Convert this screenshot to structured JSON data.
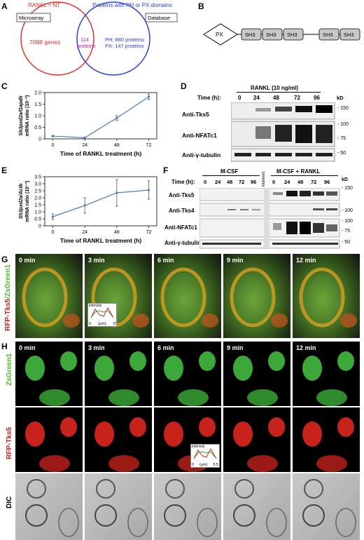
{
  "panel_labels": {
    "A": "A",
    "B": "B",
    "C": "C",
    "D": "D",
    "E": "E",
    "F": "F",
    "G": "G",
    "H": "H"
  },
  "venn": {
    "left_set": "RANKL > NT",
    "right_set": "Proteins with PH or PX domains",
    "left_box": "Microarray",
    "right_box": "Database",
    "left_count": "7088 genes",
    "overlap_line1": "114",
    "overlap_line2": "proteins",
    "right_line1": "PH: 880 proteins",
    "right_line2": "PX: 147 proteins",
    "left_color": "#e0332a",
    "right_color": "#2a3fd6",
    "overlap_color": "#c0189a"
  },
  "domains": {
    "px": "PX",
    "sh3": "SH3"
  },
  "chart_data": [
    {
      "type": "line",
      "panel": "C",
      "x": [
        0,
        24,
        48,
        72
      ],
      "y": [
        0.12,
        0.05,
        0.9,
        1.82
      ],
      "err": [
        0.03,
        0.02,
        0.1,
        0.12
      ],
      "xticks": [
        "0",
        "24",
        "48",
        "72"
      ],
      "yticks": [
        "0",
        "0.5",
        "1.0",
        "1.5",
        "2.0"
      ],
      "ylim": [
        0,
        2.0
      ],
      "xlabel": "Time of RANKL treatment (h)",
      "ylabel_line1": "Sh3pxd2a/Gapdh",
      "ylabel_line2": "mRNA ratio (10⁻³)",
      "color": "#4a7fc1"
    },
    {
      "type": "line",
      "panel": "E",
      "x": [
        0,
        24,
        48,
        72
      ],
      "y": [
        0.65,
        1.45,
        2.35,
        2.55
      ],
      "err": [
        0.2,
        0.55,
        0.95,
        0.65
      ],
      "xticks": [
        "0",
        "24",
        "48",
        "72"
      ],
      "yticks": [
        "0",
        "0.5",
        "1.0",
        "1.5",
        "2.0",
        "2.5",
        "3.0",
        "3.5"
      ],
      "ylim": [
        0,
        3.5
      ],
      "xlabel": "Time of RANKL treatment (h)",
      "ylabel_line1": "Sh3pxd2a/Actb",
      "ylabel_line2": "mRNA ratio (10⁻³)",
      "color": "#4a7fc1"
    }
  ],
  "blot_d": {
    "treatment": "RANKL (10 ng/ml)",
    "time_label": "Time (h):",
    "times": [
      "0",
      "24",
      "48",
      "72",
      "96"
    ],
    "kd": "kD",
    "rows": [
      "Anti-Tks5",
      "Anti-NFATc1",
      "Anti-γ-tubulin"
    ],
    "markers": [
      "- 150",
      "- 100",
      "- 75",
      "- 50"
    ]
  },
  "blot_f": {
    "time_label": "Time (h):",
    "group1": "M-CSF",
    "group2": "M-CSF + RANKL",
    "markers_lane": "Markers",
    "times1": [
      "0",
      "24",
      "48",
      "72",
      "96"
    ],
    "times2": [
      "0",
      "24",
      "48",
      "72",
      "96"
    ],
    "kd": "kD",
    "rows": [
      "Anti-Tks5",
      "Anti-Tks4",
      "Anti-NFATc1",
      "Anti-γ-tubulin"
    ],
    "markers": [
      "- 150",
      "- 100",
      "- 100",
      "- 75",
      "- 50"
    ]
  },
  "panel_g": {
    "side_part1": "RFP-Tks5",
    "side_part2": "/ZsGreen1",
    "times": [
      "0 min",
      "3 min",
      "6 min",
      "9 min",
      "12 min"
    ],
    "inset_ylabel": "intensity",
    "inset_x0": "0",
    "inset_unit": "(μm)",
    "inset_x1": "8"
  },
  "panel_h": {
    "row1": "ZsGreen1",
    "row2": "RFP-Tks5",
    "row3": "DIC",
    "times": [
      "0 min",
      "3 min",
      "6 min",
      "9 min",
      "12 min"
    ],
    "inset_ylabel": "intensity",
    "inset_x0": "0",
    "inset_unit": "(μm)",
    "inset_x1": "5.5"
  }
}
